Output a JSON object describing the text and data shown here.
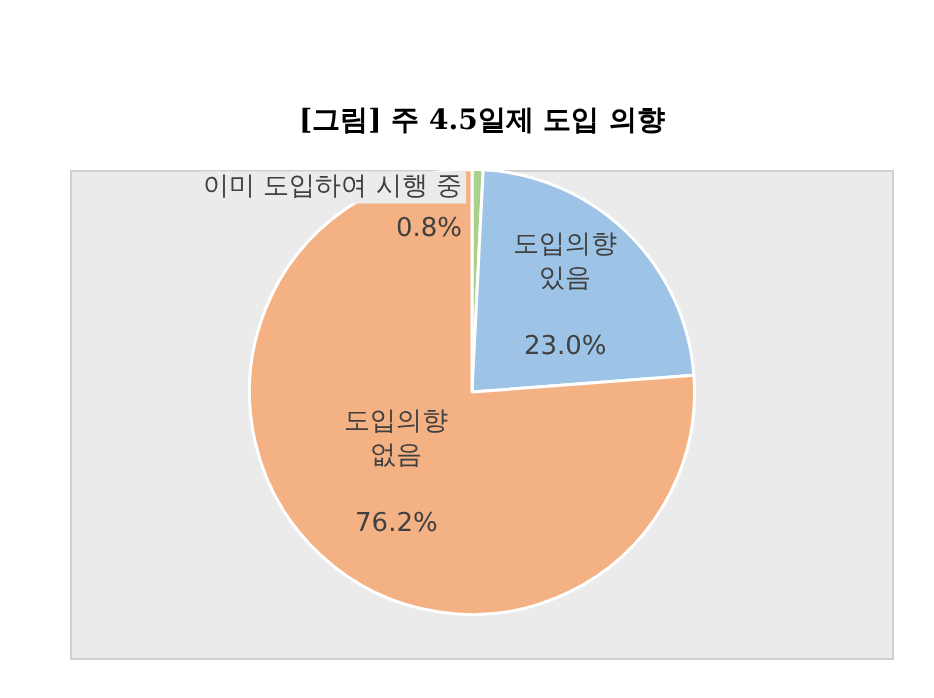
{
  "chart_data": {
    "type": "pie",
    "title": "[그림] 주 4.5일제 도입 의향",
    "categories": [
      "이미 도입하여 시행 중",
      "도입의향\n있음",
      "도입의향\n없음"
    ],
    "values": [
      0.8,
      23.0,
      76.2
    ],
    "colors": [
      "#a9d18e",
      "#9dc3e6",
      "#f4b183"
    ],
    "value_labels": [
      "0.8%",
      "23.0%",
      "76.2%"
    ],
    "legend": false
  }
}
